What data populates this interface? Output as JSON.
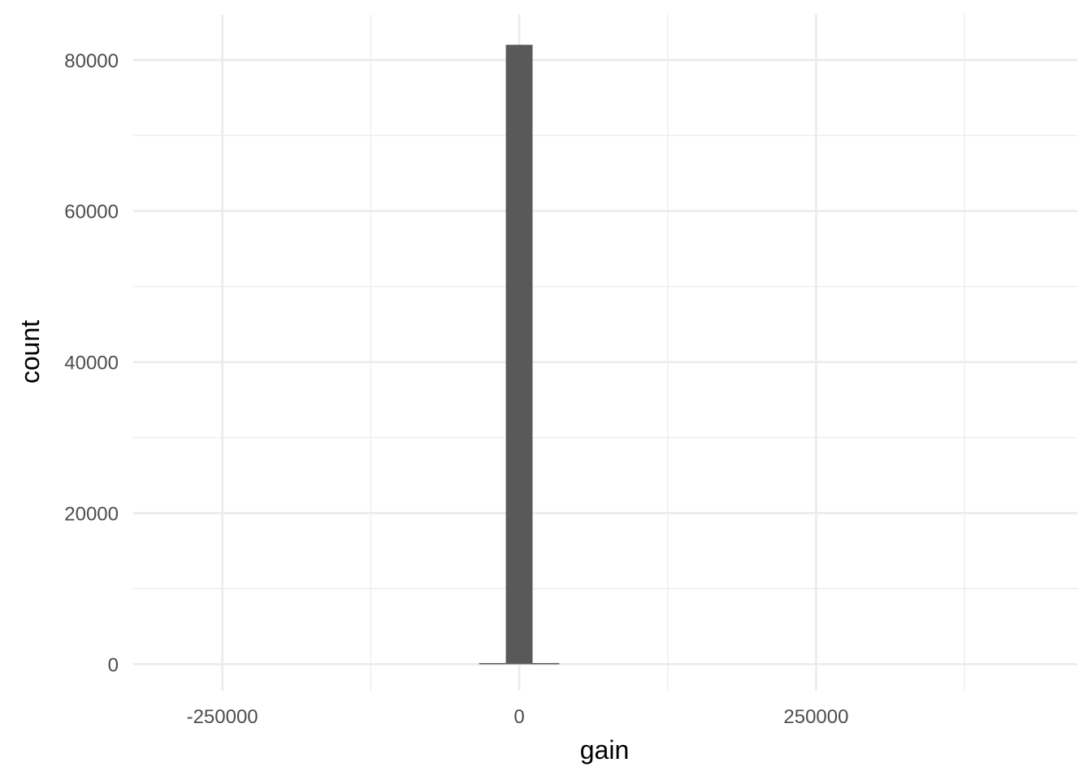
{
  "chart_data": {
    "type": "bar",
    "title": "",
    "xlabel": "gain",
    "ylabel": "count",
    "xlim": [
      -325000,
      470000
    ],
    "ylim": [
      -3500,
      86000
    ],
    "x_ticks": [
      -250000,
      0,
      250000
    ],
    "x_tick_labels": [
      "-250000",
      "0",
      "250000"
    ],
    "y_ticks": [
      0,
      20000,
      40000,
      60000,
      80000
    ],
    "y_tick_labels": [
      "0",
      "20000",
      "40000",
      "60000",
      "80000"
    ],
    "x_minor_ticks": [
      -125000,
      125000,
      375000
    ],
    "y_minor_ticks": [
      10000,
      30000,
      50000,
      70000
    ],
    "bin_width": 22500,
    "bins": [
      {
        "x_start": -33750,
        "x_end": -11250,
        "count": 150
      },
      {
        "x_start": -11250,
        "x_end": 11250,
        "count": 82000
      },
      {
        "x_start": 11250,
        "x_end": 33750,
        "count": 150
      }
    ],
    "bar_color": "#595959",
    "grid": true,
    "grid_color": "#ebebeb",
    "legend": "none"
  }
}
